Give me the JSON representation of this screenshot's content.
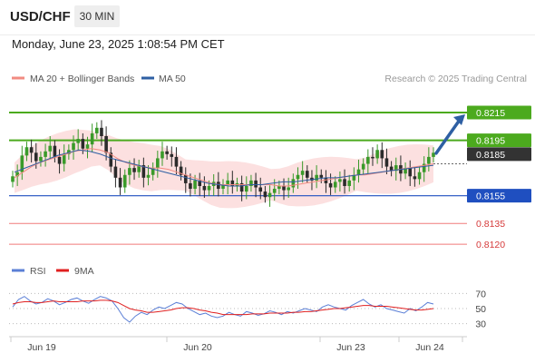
{
  "header": {
    "pair": "USD/CHF",
    "interval": "30 MIN",
    "datetime": "Monday, June 23, 2025 1:08:54 PM CET"
  },
  "legend": {
    "bollinger": {
      "label": "MA 20 + Bollinger Bands",
      "color": "#f28b82"
    },
    "ma50": {
      "label": "MA 50",
      "color": "#2e5fa3"
    },
    "credit": "Research © 2025 Trading Central"
  },
  "rsi_legend": {
    "rsi": {
      "label": "RSI",
      "color": "#5b7fd6"
    },
    "ma9": {
      "label": "9MA",
      "color": "#e02020"
    }
  },
  "colors": {
    "up": "#3a9a2a",
    "down": "#2b2b2b",
    "resistance": "#4caa1e",
    "support": "#1f4fc0",
    "target": "#f07a7a",
    "current": "#333333",
    "arrow": "#2e5fa3",
    "band": "#fbd6d6"
  },
  "chart_data": {
    "type": "line",
    "title": "USD/CHF",
    "x_ticks": [
      "Jun 19",
      "Jun 20",
      "Jun 23",
      "Jun 24"
    ],
    "y_range": [
      0.8107,
      0.8234
    ],
    "levels": [
      {
        "value": 0.8215,
        "label": "0.8215",
        "kind": "resistance",
        "badge": true
      },
      {
        "value": 0.8195,
        "label": "0.8195",
        "kind": "resistance",
        "badge": true
      },
      {
        "value": 0.8185,
        "label": "0.8185",
        "kind": "current",
        "badge": true
      },
      {
        "value": 0.8155,
        "label": "0.8155",
        "kind": "support",
        "badge": true
      },
      {
        "value": 0.8135,
        "label": "0.8135",
        "kind": "target",
        "badge": false
      },
      {
        "value": 0.812,
        "label": "0.8120",
        "kind": "target",
        "badge": false
      }
    ],
    "close": [
      0.8169,
      0.8172,
      0.8184,
      0.819,
      0.8186,
      0.818,
      0.8183,
      0.8187,
      0.8191,
      0.8183,
      0.8178,
      0.8185,
      0.8188,
      0.8193,
      0.8196,
      0.8189,
      0.8192,
      0.82,
      0.8204,
      0.8198,
      0.8186,
      0.8176,
      0.8168,
      0.8161,
      0.817,
      0.8175,
      0.8172,
      0.8177,
      0.8168,
      0.817,
      0.8175,
      0.8182,
      0.8187,
      0.8185,
      0.8183,
      0.8176,
      0.817,
      0.8164,
      0.816,
      0.8166,
      0.8162,
      0.8159,
      0.8162,
      0.8165,
      0.816,
      0.8163,
      0.8166,
      0.8162,
      0.8164,
      0.8158,
      0.8162,
      0.8166,
      0.8161,
      0.8158,
      0.8154,
      0.8157,
      0.816,
      0.8162,
      0.8159,
      0.8161,
      0.8167,
      0.817,
      0.8173,
      0.8168,
      0.8166,
      0.817,
      0.8168,
      0.8164,
      0.8161,
      0.8165,
      0.8167,
      0.8162,
      0.8166,
      0.817,
      0.8174,
      0.8178,
      0.8183,
      0.8182,
      0.8188,
      0.8182,
      0.8176,
      0.8173,
      0.8177,
      0.8171,
      0.8175,
      0.8169,
      0.8167,
      0.8172,
      0.8178,
      0.8183,
      0.8186
    ],
    "ma20": [
      0.8168,
      0.8172,
      0.8176,
      0.8179,
      0.8181,
      0.8183,
      0.8185,
      0.8187,
      0.8188,
      0.8189,
      0.8188,
      0.8186,
      0.8182,
      0.8179,
      0.8177,
      0.8176,
      0.8175,
      0.8175,
      0.8174,
      0.8172,
      0.817,
      0.8168,
      0.8166,
      0.8164,
      0.8163,
      0.8163,
      0.8163,
      0.8163,
      0.8163,
      0.8163,
      0.8163,
      0.8162,
      0.8162,
      0.8163,
      0.8164,
      0.8165,
      0.8166,
      0.8167,
      0.8168,
      0.8169,
      0.817,
      0.817,
      0.8171,
      0.8172,
      0.8173,
      0.8174,
      0.8175,
      0.8176,
      0.8177,
      0.8178
    ],
    "ma50": [
      0.8172,
      0.8175,
      0.8178,
      0.8181,
      0.8184,
      0.8186,
      0.8188,
      0.8187,
      0.8185,
      0.8182,
      0.818,
      0.8178,
      0.8176,
      0.8174,
      0.8172,
      0.817,
      0.8168,
      0.8166,
      0.8164,
      0.8163,
      0.8162,
      0.8162,
      0.8163,
      0.8163,
      0.8164,
      0.8165,
      0.8165,
      0.8166,
      0.8167,
      0.8168,
      0.8168,
      0.8169,
      0.817,
      0.8171,
      0.8172,
      0.8173,
      0.8174,
      0.8175,
      0.8176,
      0.8177
    ],
    "projection": {
      "from": 0.8185,
      "to": 0.8215
    },
    "rsi": {
      "ticks": [
        70,
        50,
        30
      ],
      "y_range": [
        20,
        80
      ],
      "rsi": [
        52,
        62,
        66,
        60,
        56,
        58,
        63,
        60,
        55,
        58,
        62,
        64,
        60,
        57,
        62,
        66,
        64,
        60,
        50,
        38,
        32,
        40,
        45,
        42,
        48,
        52,
        50,
        54,
        58,
        56,
        50,
        46,
        42,
        44,
        40,
        38,
        40,
        45,
        42,
        40,
        46,
        44,
        41,
        43,
        47,
        45,
        42,
        46,
        44,
        47,
        50,
        48,
        46,
        52,
        55,
        52,
        50,
        48,
        54,
        58,
        62,
        56,
        52,
        55,
        50,
        48,
        46,
        44,
        50,
        47,
        52,
        58,
        56
      ],
      "ma9": [
        56,
        58,
        59,
        59,
        58,
        58,
        59,
        60,
        59,
        59,
        59,
        59,
        60,
        60,
        60,
        61,
        61,
        60,
        58,
        54,
        50,
        48,
        47,
        45,
        45,
        46,
        47,
        48,
        50,
        51,
        51,
        50,
        48,
        47,
        45,
        44,
        42,
        42,
        42,
        42,
        42,
        43,
        43,
        43,
        44,
        44,
        44,
        44,
        45,
        45,
        46,
        46,
        47,
        48,
        49,
        50,
        50,
        51,
        52,
        53,
        54,
        54,
        53,
        53,
        53,
        52,
        51,
        50,
        49,
        48,
        48,
        49,
        50
      ]
    }
  }
}
